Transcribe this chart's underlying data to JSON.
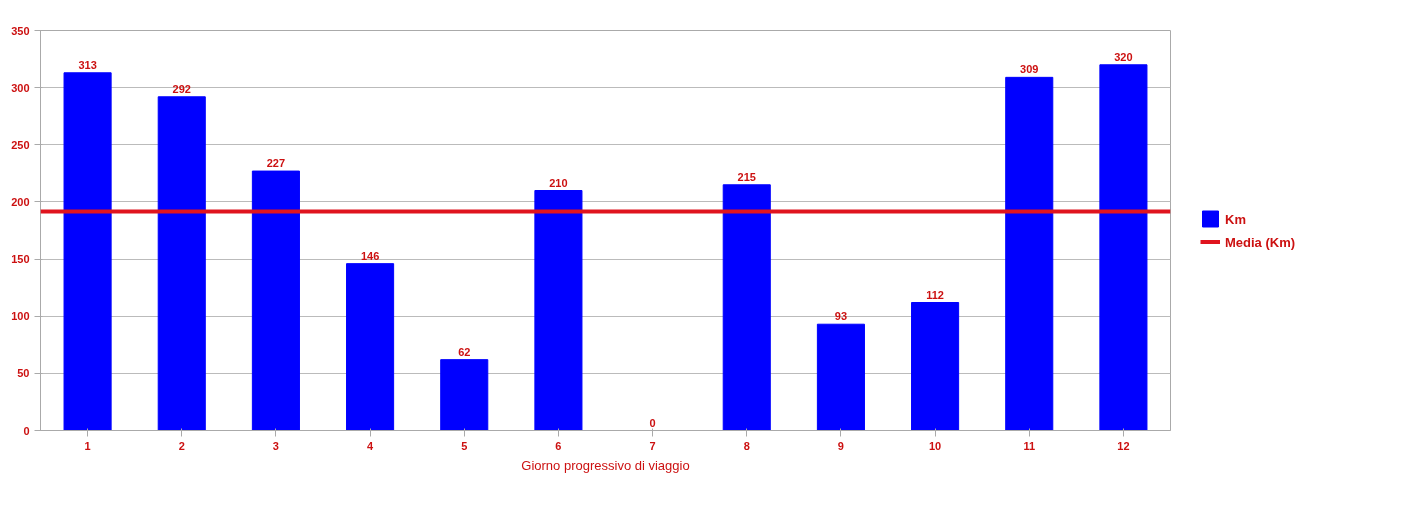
{
  "chart_data": {
    "type": "bar",
    "xlabel": "Giorno progressivo di viaggio",
    "categories": [
      "1",
      "2",
      "3",
      "4",
      "5",
      "6",
      "7",
      "8",
      "9",
      "10",
      "11",
      "12"
    ],
    "series": [
      {
        "name": "Km",
        "color": "#0000ff",
        "values": [
          313,
          292,
          227,
          146,
          62,
          210,
          0,
          215,
          93,
          112,
          309,
          320
        ]
      }
    ],
    "ref_lines": [
      {
        "axis": "y",
        "value": 191.6,
        "label": "Media (Km)",
        "color": "#e0141e"
      }
    ],
    "ylim": [
      0,
      350
    ],
    "yticks": [
      0,
      50,
      100,
      150,
      200,
      250,
      300,
      350
    ],
    "data_labels": true,
    "grid": "y",
    "legend": "right"
  }
}
